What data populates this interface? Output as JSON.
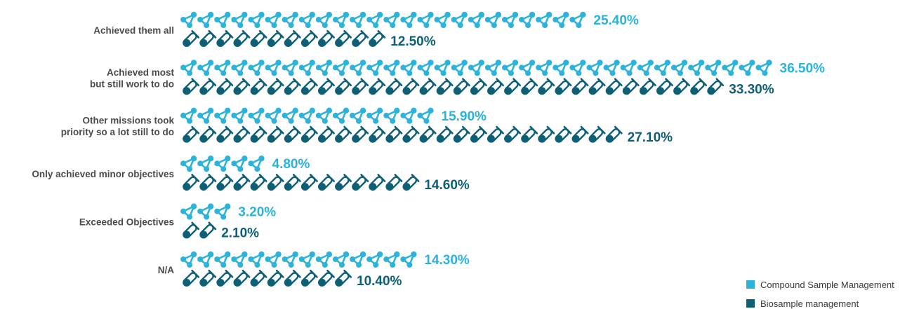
{
  "chart_data": {
    "type": "bar",
    "categories": [
      [
        "Achieved them all"
      ],
      [
        "Achieved most",
        "but still work to do"
      ],
      [
        "Other missions took",
        "priority so a lot still to do"
      ],
      [
        "Only achieved minor objectives"
      ],
      [
        "Exceeded Objectives"
      ],
      [
        "N/A"
      ]
    ],
    "series": [
      {
        "name": "Compound Sample Management",
        "icon": "molecule-icon",
        "color": "#2bb3dc",
        "values": [
          25.4,
          36.5,
          15.9,
          4.8,
          3.2,
          14.3
        ],
        "labels": [
          "25.40%",
          "36.50%",
          "15.90%",
          "4.80%",
          "3.20%",
          "14.30%"
        ]
      },
      {
        "name": "Biosample management",
        "icon": "test-tube-icon",
        "color": "#0d5f75",
        "values": [
          12.5,
          33.3,
          27.1,
          14.6,
          2.1,
          10.4
        ],
        "labels": [
          "12.50%",
          "33.30%",
          "27.10%",
          "14.60%",
          "2.10%",
          "10.40%"
        ]
      }
    ],
    "legend_position": "bottom-right",
    "grid": false
  }
}
